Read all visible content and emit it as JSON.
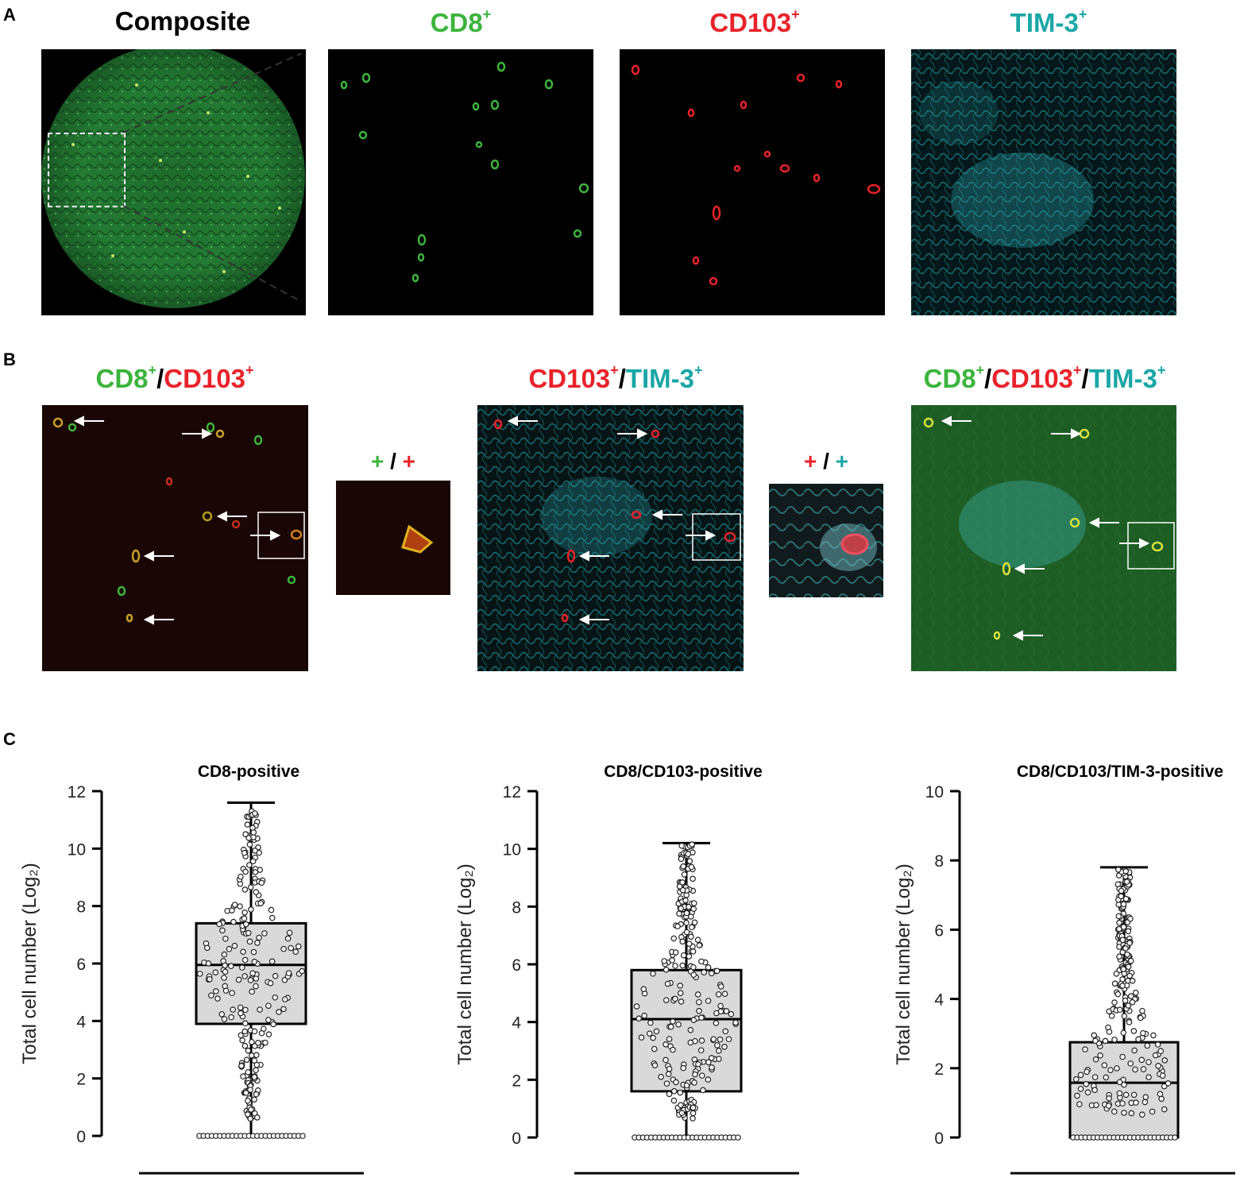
{
  "panels": {
    "A": {
      "letter": "A",
      "titles": {
        "composite": "Composite",
        "cd8": "CD8",
        "cd103": "CD103",
        "tim3": "TIM-3",
        "plus": "+"
      }
    },
    "B": {
      "letter": "B",
      "titles": {
        "cd8": "CD8",
        "cd103": "CD103",
        "tim3": "TIM-3",
        "plus": "+",
        "slash": "/"
      }
    },
    "C": {
      "letter": "C"
    }
  },
  "colors": {
    "green": "#3cb43c",
    "red": "#e8232a",
    "teal": "#1aa6a6",
    "box_fill": "#d9d9d9"
  },
  "chart_data": [
    {
      "type": "box",
      "title": "CD8-positive",
      "ylabel": "Total cell number (Log₂)",
      "ylim": [
        0,
        12
      ],
      "yticks": [
        "0",
        "2",
        "4",
        "6",
        "8",
        "10",
        "12"
      ],
      "whisker_low": 0,
      "q1": 3.9,
      "median": 5.95,
      "q3": 7.4,
      "whisker_high": 11.6
    },
    {
      "type": "box",
      "title": "CD8/CD103-positive",
      "ylabel": "Total cell number (Log₂)",
      "ylim": [
        0,
        12
      ],
      "yticks": [
        "0",
        "2",
        "4",
        "6",
        "8",
        "10",
        "12"
      ],
      "whisker_low": 0,
      "q1": 1.6,
      "median": 4.1,
      "q3": 5.8,
      "whisker_high": 10.2
    },
    {
      "type": "box",
      "title": "CD8/CD103/TIM-3-positive",
      "ylabel": "Total cell number (Log₂)",
      "ylim": [
        0,
        10
      ],
      "yticks": [
        "0",
        "2",
        "4",
        "6",
        "8",
        "10"
      ],
      "whisker_low": 0,
      "q1": 0,
      "median": 1.58,
      "q3": 2.75,
      "whisker_high": 7.8
    }
  ]
}
